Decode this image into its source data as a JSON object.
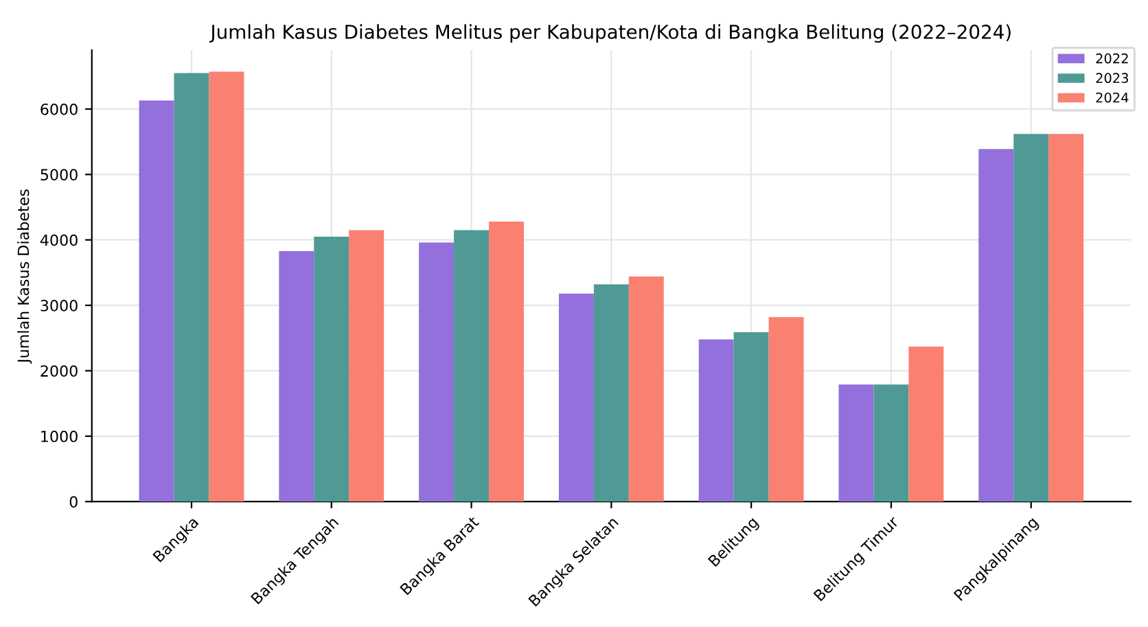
{
  "chart_data": {
    "type": "bar",
    "title": "Jumlah Kasus Diabetes Melitus per Kabupaten/Kota di Bangka Belitung (2022–2024)",
    "ylabel": "Jumlah Kasus Diabetes",
    "categories": [
      "Bangka",
      "Bangka Tengah",
      "Bangka Barat",
      "Bangka Selatan",
      "Belitung",
      "Belitung Timur",
      "Pangkalpinang"
    ],
    "series": [
      {
        "name": "2022",
        "color": "#9370db",
        "values": [
          6130,
          3830,
          3960,
          3180,
          2480,
          1790,
          5390
        ]
      },
      {
        "name": "2023",
        "color": "#4f9a94",
        "values": [
          6550,
          4050,
          4150,
          3320,
          2590,
          1790,
          5620
        ]
      },
      {
        "name": "2024",
        "color": "#fa8072",
        "values": [
          6570,
          4150,
          4280,
          3440,
          2820,
          2370,
          5620
        ]
      }
    ],
    "ylim": [
      0,
      6900
    ],
    "yticks": [
      0,
      1000,
      2000,
      3000,
      4000,
      5000,
      6000
    ],
    "grid": true,
    "legend": "top right"
  }
}
